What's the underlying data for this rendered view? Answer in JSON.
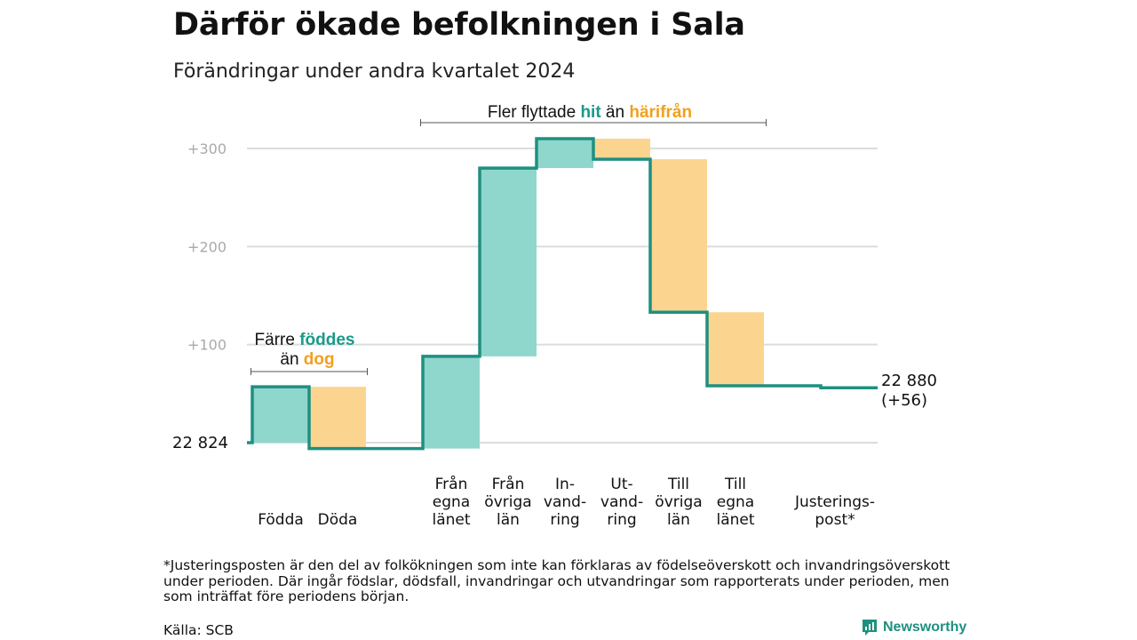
{
  "header": {
    "title": "Därför ökade befolkningen i Sala",
    "subtitle": "Förändringar under andra kvartalet 2024"
  },
  "chart_data": {
    "type": "waterfall",
    "start_label": "22  824",
    "end_label_value": "22 880",
    "end_label_change": "(+56)",
    "ylim": [
      -6,
      310
    ],
    "y_ticks": [
      {
        "value": 100,
        "label": "+100"
      },
      {
        "value": 200,
        "label": "+200"
      },
      {
        "value": 300,
        "label": "+300"
      }
    ],
    "grid": true,
    "colors": {
      "inflow": "#8fd6cd",
      "outflow": "#fbd590",
      "line": "#1e9080",
      "hit": "#1a9a8a",
      "harifran": "#f0a020"
    },
    "steps": [
      {
        "label_lines": [
          "Födda"
        ],
        "change": 57,
        "kind": "in"
      },
      {
        "label_lines": [
          "Döda"
        ],
        "change": -63,
        "kind": "out"
      },
      {
        "label_lines": [
          "Från",
          "egna",
          "länet"
        ],
        "change": 94,
        "kind": "in"
      },
      {
        "label_lines": [
          "Från",
          "övriga",
          "län"
        ],
        "change": 192,
        "kind": "in"
      },
      {
        "label_lines": [
          "In-",
          "vand-",
          "ring"
        ],
        "change": 30,
        "kind": "in"
      },
      {
        "label_lines": [
          "Ut-",
          "vand-",
          "ring"
        ],
        "change": -21,
        "kind": "out"
      },
      {
        "label_lines": [
          "Till",
          "övriga",
          "län"
        ],
        "change": -156,
        "kind": "out"
      },
      {
        "label_lines": [
          "Till",
          "egna",
          "länet"
        ],
        "change": -75,
        "kind": "out"
      },
      {
        "label_lines": [
          "Justerings-",
          "post*"
        ],
        "change": -2,
        "kind": "adj"
      }
    ],
    "annotations": {
      "births": {
        "line1_prefix": "Färre ",
        "line1_highlight": "föddes",
        "line2_prefix": "än ",
        "line2_highlight": "dog"
      },
      "migration": {
        "prefix": "Fler flyttade ",
        "hit": "hit",
        "middle": " än ",
        "harifran": "härifrån"
      }
    }
  },
  "footnote": "*Justeringsposten är den del av folkökningen som inte kan förklaras av födelseöverskott och invandringsöverskott under perioden. Där ingår födslar, dödsfall, invandringar och utvandringar som rapporterats under perioden, men som inträffat före periodens början.",
  "source": "Källa: SCB",
  "brand": "Newsworthy"
}
